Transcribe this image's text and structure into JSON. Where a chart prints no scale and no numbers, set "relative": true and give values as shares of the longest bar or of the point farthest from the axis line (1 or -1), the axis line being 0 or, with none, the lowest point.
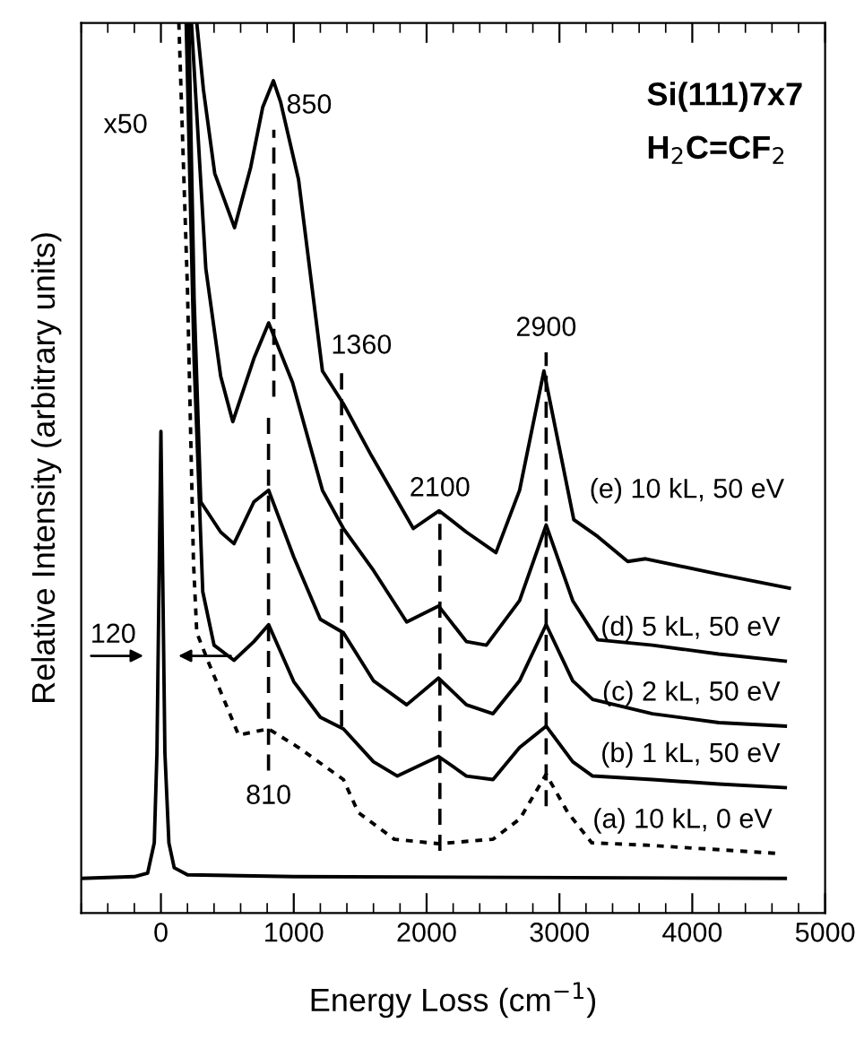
{
  "chart_data": {
    "type": "line",
    "relative": true,
    "xlabel": "Energy Loss (cm$^{−1}$)",
    "ylabel": "Relative Intensity (arbitrary units)",
    "xlim": [
      -600,
      5000
    ],
    "xticks": [
      0,
      1000,
      2000,
      3000,
      4000,
      5000
    ],
    "grid": false,
    "legend": false,
    "marker": "none",
    "series": [
      {
        "name": "(e) 10 kL, 50 eV",
        "color": "#000000",
        "line_style": "solid",
        "x": [
          270,
          320,
          405,
          554,
          676,
          766,
          847,
          901,
          1036,
          1216,
          1374,
          1577,
          1900,
          2095,
          2300,
          2522,
          2700,
          2883,
          3108,
          3288,
          3514,
          3649,
          4189,
          4730
        ],
        "values": [
          1.0,
          0.925,
          0.831,
          0.77,
          0.838,
          0.905,
          0.935,
          0.911,
          0.824,
          0.609,
          0.572,
          0.516,
          0.432,
          0.452,
          0.428,
          0.405,
          0.475,
          0.609,
          0.442,
          0.423,
          0.395,
          0.398,
          0.381,
          0.365
        ]
      },
      {
        "name": "(d) 5 kL, 50 eV",
        "color": "#000000",
        "line_style": "solid",
        "x": [
          230,
          338,
          450,
          541,
          700,
          811,
          991,
          1216,
          1374,
          1600,
          1850,
          2090,
          2300,
          2450,
          2700,
          2900,
          3100,
          3288,
          3700,
          4200,
          4700
        ],
        "values": [
          1.0,
          0.724,
          0.603,
          0.552,
          0.623,
          0.663,
          0.596,
          0.475,
          0.432,
          0.385,
          0.327,
          0.345,
          0.305,
          0.301,
          0.351,
          0.436,
          0.351,
          0.307,
          0.301,
          0.291,
          0.283
        ]
      },
      {
        "name": "(c) 2 kL, 50 eV",
        "color": "#000000",
        "line_style": "solid",
        "x": [
          210,
          250,
          300,
          450,
          550,
          700,
          811,
          1000,
          1200,
          1374,
          1600,
          1850,
          2090,
          2300,
          2500,
          2700,
          2900,
          3100,
          3250,
          3700,
          4200,
          4700
        ],
        "values": [
          1.0,
          0.69,
          0.462,
          0.428,
          0.415,
          0.462,
          0.475,
          0.4,
          0.33,
          0.315,
          0.261,
          0.234,
          0.264,
          0.234,
          0.224,
          0.261,
          0.324,
          0.261,
          0.24,
          0.224,
          0.214,
          0.21
        ]
      },
      {
        "name": "(b) 1 kL, 50 eV",
        "color": "#000000",
        "line_style": "solid",
        "x": [
          190,
          250,
          315,
          400,
          550,
          700,
          811,
          1000,
          1200,
          1374,
          1600,
          1780,
          2090,
          2300,
          2500,
          2700,
          2900,
          3100,
          3250,
          3700,
          4200,
          4700
        ],
        "values": [
          1.0,
          0.62,
          0.361,
          0.301,
          0.284,
          0.305,
          0.324,
          0.26,
          0.22,
          0.207,
          0.17,
          0.154,
          0.176,
          0.154,
          0.15,
          0.186,
          0.21,
          0.17,
          0.154,
          0.15,
          0.145,
          0.141
        ]
      },
      {
        "name": "(a) 10 kL, 0 eV",
        "color": "#000000",
        "line_style": "dotted",
        "x": [
          135,
          200,
          245,
          270,
          360,
          585,
          810,
          1036,
          1374,
          1486,
          1757,
          2090,
          2500,
          2703,
          2900,
          3063,
          3243,
          3700,
          4640
        ],
        "values": [
          1.0,
          0.7,
          0.395,
          0.315,
          0.281,
          0.2,
          0.207,
          0.186,
          0.15,
          0.113,
          0.083,
          0.078,
          0.083,
          0.106,
          0.156,
          0.113,
          0.079,
          0.076,
          0.067
        ]
      },
      {
        "color": "#000000",
        "line_style": "solid",
        "x": [
          -600,
          -200,
          -100,
          -50,
          -30,
          -15,
          0,
          15,
          30,
          60,
          100,
          200,
          1000,
          4700
        ],
        "values": [
          0.039,
          0.041,
          0.045,
          0.079,
          0.18,
          0.361,
          0.541,
          0.361,
          0.18,
          0.079,
          0.051,
          0.043,
          0.041,
          0.039
        ]
      }
    ],
    "ref_lines": [
      {
        "axis": "x",
        "value": 850,
        "label": "850",
        "line_style": "dashed"
      },
      {
        "axis": "x",
        "value": 810,
        "label": "810",
        "line_style": "dashed"
      },
      {
        "axis": "x",
        "value": 1360,
        "label": "1360",
        "line_style": "dashed"
      },
      {
        "axis": "x",
        "value": 2100,
        "label": "2100",
        "line_style": "dashed"
      },
      {
        "axis": "x",
        "value": 2900,
        "label": "2900",
        "line_style": "dashed"
      }
    ],
    "annotations": [
      "Si(111)7x7",
      "H$_{2}$C=CF$_{2}$",
      "x50",
      {
        "text": "120",
        "x": 0,
        "y": 0.289
      }
    ]
  }
}
